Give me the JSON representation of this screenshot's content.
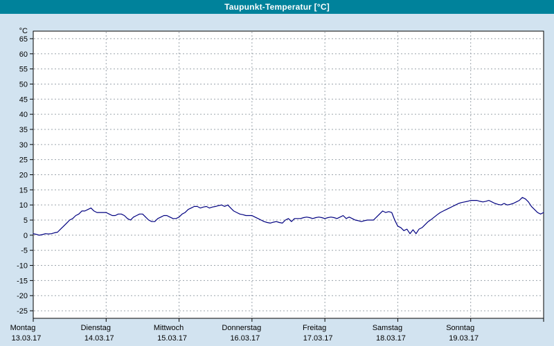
{
  "window": {
    "title": "Taupunkt-Temperatur [°C]"
  },
  "colors": {
    "background": "#d2e3f0",
    "titlebar": "#00829b",
    "titlebar_text": "#ffffff",
    "plot_background": "#ffffff",
    "frame": "#000000",
    "line": "#000080"
  },
  "chart_data": {
    "type": "line",
    "title": "Taupunkt-Temperatur [°C]",
    "ylabel": "°C",
    "ylim": [
      -27.5,
      67.5
    ],
    "xlim_hours": [
      0,
      168
    ],
    "grid_color": "#9aa3ab",
    "grid_dashed": true,
    "legend": "none",
    "y_ticks": [
      65,
      60,
      55,
      50,
      45,
      40,
      35,
      30,
      25,
      20,
      15,
      10,
      5,
      0,
      -5,
      -10,
      -15,
      -20,
      -25
    ],
    "x_axis_days": [
      {
        "name": "Montag",
        "date": "13.03.17",
        "hour": 0
      },
      {
        "name": "Dienstag",
        "date": "14.03.17",
        "hour": 24
      },
      {
        "name": "Mittwoch",
        "date": "15.03.17",
        "hour": 48
      },
      {
        "name": "Donnerstag",
        "date": "16.03.17",
        "hour": 72
      },
      {
        "name": "Freitag",
        "date": "17.03.17",
        "hour": 96
      },
      {
        "name": "Samstag",
        "date": "18.03.17",
        "hour": 120
      },
      {
        "name": "Sonntag",
        "date": "19.03.17",
        "hour": 144
      }
    ],
    "series": [
      {
        "name": "Taupunkt-Temperatur",
        "color": "#000080",
        "points": [
          [
            0,
            0.5
          ],
          [
            1,
            0.3
          ],
          [
            2,
            0.0
          ],
          [
            3,
            0.2
          ],
          [
            4,
            0.5
          ],
          [
            5,
            0.4
          ],
          [
            6,
            0.5
          ],
          [
            7,
            0.8
          ],
          [
            8,
            1.0
          ],
          [
            9,
            2.0
          ],
          [
            10,
            3.0
          ],
          [
            11,
            4.0
          ],
          [
            12,
            5.0
          ],
          [
            13,
            5.5
          ],
          [
            14,
            6.5
          ],
          [
            15,
            7.0
          ],
          [
            16,
            8.0
          ],
          [
            17,
            8.0
          ],
          [
            18,
            8.5
          ],
          [
            19,
            9.0
          ],
          [
            20,
            8.0
          ],
          [
            21,
            7.5
          ],
          [
            22,
            7.5
          ],
          [
            23,
            7.5
          ],
          [
            24,
            7.5
          ],
          [
            25,
            7.0
          ],
          [
            26,
            6.5
          ],
          [
            27,
            6.5
          ],
          [
            28,
            7.0
          ],
          [
            29,
            7.0
          ],
          [
            30,
            6.5
          ],
          [
            31,
            5.5
          ],
          [
            32,
            5.0
          ],
          [
            33,
            6.0
          ],
          [
            34,
            6.5
          ],
          [
            35,
            7.0
          ],
          [
            36,
            7.0
          ],
          [
            37,
            6.0
          ],
          [
            38,
            5.0
          ],
          [
            39,
            4.5
          ],
          [
            40,
            4.5
          ],
          [
            41,
            5.5
          ],
          [
            42,
            6.0
          ],
          [
            43,
            6.5
          ],
          [
            44,
            6.5
          ],
          [
            45,
            6.0
          ],
          [
            46,
            5.5
          ],
          [
            47,
            5.5
          ],
          [
            48,
            6.0
          ],
          [
            49,
            7.0
          ],
          [
            50,
            7.5
          ],
          [
            51,
            8.5
          ],
          [
            52,
            9.0
          ],
          [
            53,
            9.5
          ],
          [
            54,
            9.5
          ],
          [
            55,
            9.0
          ],
          [
            56,
            9.3
          ],
          [
            57,
            9.5
          ],
          [
            58,
            9.0
          ],
          [
            59,
            9.3
          ],
          [
            60,
            9.5
          ],
          [
            61,
            9.8
          ],
          [
            62,
            10.0
          ],
          [
            63,
            9.5
          ],
          [
            64,
            10.0
          ],
          [
            65,
            9.0
          ],
          [
            66,
            8.0
          ],
          [
            67,
            7.5
          ],
          [
            68,
            7.0
          ],
          [
            69,
            6.8
          ],
          [
            70,
            6.5
          ],
          [
            71,
            6.5
          ],
          [
            72,
            6.5
          ],
          [
            73,
            6.0
          ],
          [
            74,
            5.5
          ],
          [
            75,
            5.0
          ],
          [
            76,
            4.5
          ],
          [
            77,
            4.2
          ],
          [
            78,
            4.0
          ],
          [
            79,
            4.3
          ],
          [
            80,
            4.5
          ],
          [
            81,
            4.2
          ],
          [
            82,
            4.0
          ],
          [
            83,
            5.0
          ],
          [
            84,
            5.5
          ],
          [
            85,
            4.5
          ],
          [
            86,
            5.5
          ],
          [
            87,
            5.5
          ],
          [
            88,
            5.5
          ],
          [
            89,
            5.8
          ],
          [
            90,
            6.0
          ],
          [
            91,
            5.8
          ],
          [
            92,
            5.5
          ],
          [
            93,
            5.8
          ],
          [
            94,
            6.0
          ],
          [
            95,
            5.8
          ],
          [
            96,
            5.5
          ],
          [
            97,
            5.8
          ],
          [
            98,
            6.0
          ],
          [
            99,
            5.8
          ],
          [
            100,
            5.5
          ],
          [
            101,
            6.0
          ],
          [
            102,
            6.5
          ],
          [
            103,
            5.5
          ],
          [
            104,
            6.0
          ],
          [
            105,
            5.5
          ],
          [
            106,
            5.0
          ],
          [
            107,
            4.8
          ],
          [
            108,
            4.5
          ],
          [
            109,
            4.8
          ],
          [
            110,
            5.0
          ],
          [
            111,
            5.0
          ],
          [
            112,
            5.0
          ],
          [
            113,
            6.0
          ],
          [
            114,
            7.0
          ],
          [
            115,
            8.0
          ],
          [
            116,
            7.5
          ],
          [
            117,
            7.8
          ],
          [
            118,
            7.5
          ],
          [
            119,
            5.0
          ],
          [
            120,
            3.0
          ],
          [
            121,
            2.5
          ],
          [
            122,
            1.5
          ],
          [
            123,
            2.0
          ],
          [
            124,
            0.5
          ],
          [
            125,
            1.8
          ],
          [
            126,
            0.5
          ],
          [
            127,
            2.0
          ],
          [
            128,
            2.5
          ],
          [
            129,
            3.5
          ],
          [
            130,
            4.5
          ],
          [
            131,
            5.2
          ],
          [
            132,
            6.0
          ],
          [
            133,
            6.8
          ],
          [
            134,
            7.5
          ],
          [
            135,
            8.0
          ],
          [
            136,
            8.5
          ],
          [
            137,
            9.0
          ],
          [
            138,
            9.5
          ],
          [
            139,
            10.0
          ],
          [
            140,
            10.5
          ],
          [
            141,
            10.8
          ],
          [
            142,
            11.0
          ],
          [
            143,
            11.2
          ],
          [
            144,
            11.5
          ],
          [
            145,
            11.5
          ],
          [
            146,
            11.5
          ],
          [
            147,
            11.2
          ],
          [
            148,
            11.0
          ],
          [
            149,
            11.2
          ],
          [
            150,
            11.5
          ],
          [
            151,
            11.0
          ],
          [
            152,
            10.5
          ],
          [
            153,
            10.2
          ],
          [
            154,
            10.0
          ],
          [
            155,
            10.5
          ],
          [
            156,
            10.0
          ],
          [
            157,
            10.2
          ],
          [
            158,
            10.5
          ],
          [
            159,
            11.0
          ],
          [
            160,
            11.5
          ],
          [
            161,
            12.5
          ],
          [
            162,
            12.0
          ],
          [
            163,
            11.0
          ],
          [
            164,
            9.5
          ],
          [
            165,
            8.5
          ],
          [
            166,
            7.5
          ],
          [
            167,
            7.0
          ],
          [
            168,
            7.5
          ]
        ]
      }
    ]
  }
}
